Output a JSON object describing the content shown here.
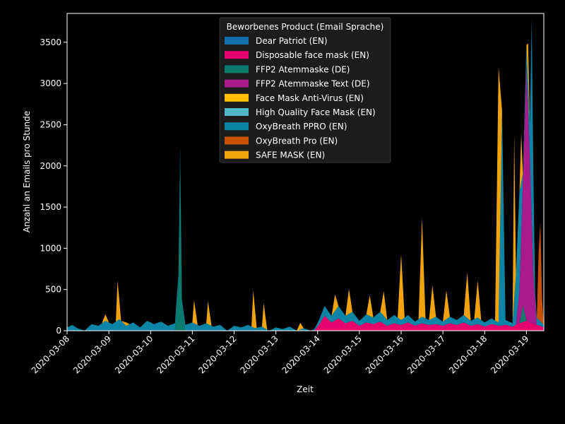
{
  "chart_data": {
    "type": "area",
    "stacked": true,
    "xlabel": "Zeit",
    "ylabel": "Anzahl an Emails pro Stunde",
    "ylim": [
      0,
      3850
    ],
    "xlim": [
      "2020-03-08T00:00",
      "2020-03-19T10:00"
    ],
    "yticks": [
      0,
      500,
      1000,
      1500,
      2000,
      2500,
      3000,
      3500
    ],
    "xticks": [
      "2020-03-08",
      "2020-03-09",
      "2020-03-10",
      "2020-03-11",
      "2020-03-12",
      "2020-03-13",
      "2020-03-14",
      "2020-03-15",
      "2020-03-16",
      "2020-03-17",
      "2020-03-18",
      "2020-03-19"
    ],
    "grid": false,
    "background": "#000000",
    "legend": {
      "title": "Beworbenes Product (Email Sprache)",
      "position": "top-center",
      "background": "#1c1c1c"
    },
    "series": [
      {
        "name": "Dear Patriot (EN)",
        "color": "#1170aa",
        "points": [
          [
            "2020-03-08T00:00",
            0
          ],
          [
            "2020-03-19T10:00",
            0
          ]
        ]
      },
      {
        "name": "Disposable face mask (EN)",
        "color": "#e8006f",
        "points": [
          [
            "2020-03-08T00:00",
            0
          ],
          [
            "2020-03-13T22:00",
            0
          ],
          [
            "2020-03-14T01:00",
            80
          ],
          [
            "2020-03-14T04:00",
            180
          ],
          [
            "2020-03-14T08:00",
            100
          ],
          [
            "2020-03-14T12:00",
            150
          ],
          [
            "2020-03-14T16:00",
            90
          ],
          [
            "2020-03-14T20:00",
            120
          ],
          [
            "2020-03-15T00:00",
            60
          ],
          [
            "2020-03-15T04:00",
            100
          ],
          [
            "2020-03-15T08:00",
            80
          ],
          [
            "2020-03-15T12:00",
            110
          ],
          [
            "2020-03-15T16:00",
            60
          ],
          [
            "2020-03-15T20:00",
            90
          ],
          [
            "2020-03-16T00:00",
            70
          ],
          [
            "2020-03-16T04:00",
            100
          ],
          [
            "2020-03-16T08:00",
            60
          ],
          [
            "2020-03-16T12:00",
            90
          ],
          [
            "2020-03-16T16:00",
            70
          ],
          [
            "2020-03-16T20:00",
            80
          ],
          [
            "2020-03-17T00:00",
            60
          ],
          [
            "2020-03-17T04:00",
            90
          ],
          [
            "2020-03-17T08:00",
            70
          ],
          [
            "2020-03-17T12:00",
            100
          ],
          [
            "2020-03-17T16:00",
            60
          ],
          [
            "2020-03-17T20:00",
            80
          ],
          [
            "2020-03-18T00:00",
            50
          ],
          [
            "2020-03-18T04:00",
            80
          ],
          [
            "2020-03-18T08:00",
            60
          ],
          [
            "2020-03-18T12:00",
            70
          ],
          [
            "2020-03-18T16:00",
            50
          ],
          [
            "2020-03-18T20:00",
            90
          ],
          [
            "2020-03-19T00:00",
            120
          ],
          [
            "2020-03-19T04:00",
            80
          ],
          [
            "2020-03-19T08:00",
            60
          ],
          [
            "2020-03-19T10:00",
            40
          ]
        ]
      },
      {
        "name": "FFP2 Atemmaske (DE)",
        "color": "#0b7b6e",
        "points": [
          [
            "2020-03-08T00:00",
            0
          ],
          [
            "2020-03-10T14:00",
            0
          ],
          [
            "2020-03-10T16:00",
            600
          ],
          [
            "2020-03-10T17:00",
            2150
          ],
          [
            "2020-03-10T18:00",
            300
          ],
          [
            "2020-03-10T20:00",
            0
          ],
          [
            "2020-03-18T20:00",
            0
          ],
          [
            "2020-03-18T22:00",
            200
          ],
          [
            "2020-03-19T00:00",
            0
          ],
          [
            "2020-03-19T10:00",
            0
          ]
        ]
      },
      {
        "name": "FFP2 Atemmaske Text (DE)",
        "color": "#a91b8a",
        "points": [
          [
            "2020-03-08T00:00",
            0
          ],
          [
            "2020-03-18T18:00",
            0
          ],
          [
            "2020-03-18T20:00",
            400
          ],
          [
            "2020-03-18T22:00",
            1500
          ],
          [
            "2020-03-19T00:00",
            3100
          ],
          [
            "2020-03-19T02:00",
            2000
          ],
          [
            "2020-03-19T04:00",
            600
          ],
          [
            "2020-03-19T06:00",
            0
          ],
          [
            "2020-03-19T10:00",
            0
          ]
        ]
      },
      {
        "name": "Face Mask Anti-Virus (EN)",
        "color": "#ffbf00",
        "points": [
          [
            "2020-03-08T00:00",
            0
          ],
          [
            "2020-03-19T10:00",
            0
          ]
        ]
      },
      {
        "name": "High Quality Face Mask (EN)",
        "color": "#4fb6c9",
        "points": [
          [
            "2020-03-08T00:00",
            0
          ],
          [
            "2020-03-19T10:00",
            0
          ]
        ]
      },
      {
        "name": "OxyBreath PPRO (EN)",
        "color": "#0b84a5",
        "points": [
          [
            "2020-03-08T00:00",
            40
          ],
          [
            "2020-03-08T03:00",
            70
          ],
          [
            "2020-03-08T06:00",
            30
          ],
          [
            "2020-03-08T10:00",
            0
          ],
          [
            "2020-03-08T14:00",
            80
          ],
          [
            "2020-03-08T18:00",
            60
          ],
          [
            "2020-03-08T22:00",
            120
          ],
          [
            "2020-03-09T02:00",
            80
          ],
          [
            "2020-03-09T06:00",
            140
          ],
          [
            "2020-03-09T10:00",
            60
          ],
          [
            "2020-03-09T14:00",
            100
          ],
          [
            "2020-03-09T18:00",
            40
          ],
          [
            "2020-03-09T22:00",
            120
          ],
          [
            "2020-03-10T02:00",
            80
          ],
          [
            "2020-03-10T06:00",
            110
          ],
          [
            "2020-03-10T10:00",
            60
          ],
          [
            "2020-03-10T14:00",
            90
          ],
          [
            "2020-03-10T20:00",
            70
          ],
          [
            "2020-03-11T00:00",
            100
          ],
          [
            "2020-03-11T04:00",
            60
          ],
          [
            "2020-03-11T08:00",
            90
          ],
          [
            "2020-03-11T12:00",
            50
          ],
          [
            "2020-03-11T16:00",
            70
          ],
          [
            "2020-03-11T20:00",
            0
          ],
          [
            "2020-03-12T00:00",
            60
          ],
          [
            "2020-03-12T04:00",
            40
          ],
          [
            "2020-03-12T08:00",
            70
          ],
          [
            "2020-03-12T12:00",
            30
          ],
          [
            "2020-03-12T16:00",
            50
          ],
          [
            "2020-03-12T20:00",
            0
          ],
          [
            "2020-03-13T00:00",
            40
          ],
          [
            "2020-03-13T04:00",
            20
          ],
          [
            "2020-03-13T08:00",
            50
          ],
          [
            "2020-03-13T12:00",
            0
          ],
          [
            "2020-03-13T16:00",
            30
          ],
          [
            "2020-03-13T20:00",
            0
          ],
          [
            "2020-03-14T00:00",
            40
          ],
          [
            "2020-03-14T04:00",
            120
          ],
          [
            "2020-03-14T08:00",
            80
          ],
          [
            "2020-03-14T12:00",
            150
          ],
          [
            "2020-03-14T16:00",
            90
          ],
          [
            "2020-03-14T20:00",
            110
          ],
          [
            "2020-03-15T00:00",
            60
          ],
          [
            "2020-03-15T04:00",
            100
          ],
          [
            "2020-03-15T08:00",
            80
          ],
          [
            "2020-03-15T12:00",
            120
          ],
          [
            "2020-03-15T16:00",
            70
          ],
          [
            "2020-03-15T20:00",
            100
          ],
          [
            "2020-03-16T00:00",
            60
          ],
          [
            "2020-03-16T04:00",
            90
          ],
          [
            "2020-03-16T08:00",
            50
          ],
          [
            "2020-03-16T12:00",
            80
          ],
          [
            "2020-03-16T16:00",
            60
          ],
          [
            "2020-03-16T20:00",
            90
          ],
          [
            "2020-03-17T00:00",
            50
          ],
          [
            "2020-03-17T04:00",
            80
          ],
          [
            "2020-03-17T08:00",
            60
          ],
          [
            "2020-03-17T12:00",
            90
          ],
          [
            "2020-03-17T16:00",
            60
          ],
          [
            "2020-03-17T20:00",
            80
          ],
          [
            "2020-03-18T00:00",
            50
          ],
          [
            "2020-03-18T04:00",
            70
          ],
          [
            "2020-03-18T08:00",
            40
          ],
          [
            "2020-03-18T10:00",
            2600
          ],
          [
            "2020-03-18T12:00",
            60
          ],
          [
            "2020-03-18T16:00",
            40
          ],
          [
            "2020-03-18T20:00",
            1200
          ],
          [
            "2020-03-18T22:00",
            100
          ],
          [
            "2020-03-19T02:00",
            400
          ],
          [
            "2020-03-19T03:00",
            2400
          ],
          [
            "2020-03-19T05:00",
            100
          ],
          [
            "2020-03-19T10:00",
            30
          ]
        ]
      },
      {
        "name": "OxyBreath Pro (EN)",
        "color": "#c85200",
        "points": [
          [
            "2020-03-08T00:00",
            0
          ],
          [
            "2020-03-19T06:00",
            0
          ],
          [
            "2020-03-19T07:00",
            800
          ],
          [
            "2020-03-19T08:00",
            1200
          ],
          [
            "2020-03-19T09:00",
            300
          ],
          [
            "2020-03-19T10:00",
            0
          ]
        ]
      },
      {
        "name": "SAFE MASK (EN)",
        "color": "#f0a30a",
        "points": [
          [
            "2020-03-08T00:00",
            0
          ],
          [
            "2020-03-08T20:00",
            0
          ],
          [
            "2020-03-08T22:00",
            80
          ],
          [
            "2020-03-09T00:00",
            0
          ],
          [
            "2020-03-09T04:00",
            0
          ],
          [
            "2020-03-09T05:00",
            480
          ],
          [
            "2020-03-09T07:00",
            0
          ],
          [
            "2020-03-09T10:00",
            40
          ],
          [
            "2020-03-09T12:00",
            0
          ],
          [
            "2020-03-10T16:00",
            0
          ],
          [
            "2020-03-10T18:00",
            0
          ],
          [
            "2020-03-11T00:00",
            0
          ],
          [
            "2020-03-11T01:00",
            280
          ],
          [
            "2020-03-11T03:00",
            0
          ],
          [
            "2020-03-11T08:00",
            0
          ],
          [
            "2020-03-11T09:00",
            280
          ],
          [
            "2020-03-11T11:00",
            0
          ],
          [
            "2020-03-12T10:00",
            0
          ],
          [
            "2020-03-12T11:00",
            450
          ],
          [
            "2020-03-12T13:00",
            0
          ],
          [
            "2020-03-12T16:00",
            0
          ],
          [
            "2020-03-12T17:00",
            300
          ],
          [
            "2020-03-12T19:00",
            0
          ],
          [
            "2020-03-13T12:00",
            0
          ],
          [
            "2020-03-13T14:00",
            80
          ],
          [
            "2020-03-13T16:00",
            0
          ],
          [
            "2020-03-14T08:00",
            0
          ],
          [
            "2020-03-14T10:00",
            200
          ],
          [
            "2020-03-14T12:00",
            0
          ],
          [
            "2020-03-14T16:00",
            0
          ],
          [
            "2020-03-14T18:00",
            300
          ],
          [
            "2020-03-14T20:00",
            0
          ],
          [
            "2020-03-15T04:00",
            0
          ],
          [
            "2020-03-15T06:00",
            250
          ],
          [
            "2020-03-15T08:00",
            0
          ],
          [
            "2020-03-15T12:00",
            0
          ],
          [
            "2020-03-15T14:00",
            300
          ],
          [
            "2020-03-15T16:00",
            0
          ],
          [
            "2020-03-15T22:00",
            0
          ],
          [
            "2020-03-16T00:00",
            800
          ],
          [
            "2020-03-16T02:00",
            0
          ],
          [
            "2020-03-16T10:00",
            0
          ],
          [
            "2020-03-16T12:00",
            1200
          ],
          [
            "2020-03-16T14:00",
            0
          ],
          [
            "2020-03-16T16:00",
            0
          ],
          [
            "2020-03-16T18:00",
            400
          ],
          [
            "2020-03-16T20:00",
            0
          ],
          [
            "2020-03-17T00:00",
            0
          ],
          [
            "2020-03-17T02:00",
            350
          ],
          [
            "2020-03-17T04:00",
            0
          ],
          [
            "2020-03-17T12:00",
            0
          ],
          [
            "2020-03-17T14:00",
            550
          ],
          [
            "2020-03-17T16:00",
            0
          ],
          [
            "2020-03-17T18:00",
            0
          ],
          [
            "2020-03-17T20:00",
            450
          ],
          [
            "2020-03-17T22:00",
            0
          ],
          [
            "2020-03-18T06:00",
            0
          ],
          [
            "2020-03-18T08:00",
            3100
          ],
          [
            "2020-03-18T10:00",
            0
          ],
          [
            "2020-03-18T16:00",
            0
          ],
          [
            "2020-03-18T17:00",
            2000
          ],
          [
            "2020-03-18T18:00",
            0
          ],
          [
            "2020-03-18T20:00",
            0
          ],
          [
            "2020-03-18T21:00",
            600
          ],
          [
            "2020-03-18T22:00",
            0
          ],
          [
            "2020-03-19T00:00",
            0
          ],
          [
            "2020-03-19T01:00",
            500
          ],
          [
            "2020-03-19T02:00",
            0
          ],
          [
            "2020-03-19T10:00",
            0
          ]
        ]
      }
    ]
  }
}
